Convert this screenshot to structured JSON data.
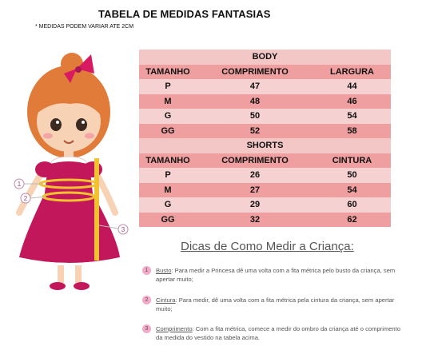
{
  "title": "TABELA DE MEDIDAS FANTASIAS",
  "note": "* MEDIDAS PODEM VARIAR ATE  2CM",
  "body": {
    "section": "BODY",
    "headers": [
      "TAMANHO",
      "COMPRIMENTO",
      "LARGURA"
    ],
    "rows": [
      [
        "P",
        "47",
        "44"
      ],
      [
        "M",
        "48",
        "46"
      ],
      [
        "G",
        "50",
        "54"
      ],
      [
        "GG",
        "52",
        "58"
      ]
    ]
  },
  "shorts": {
    "section": "SHORTS",
    "headers": [
      "TAMANHO",
      "COMPRIMENTO",
      "CINTURA"
    ],
    "rows": [
      [
        "P",
        "26",
        "50"
      ],
      [
        "M",
        "27",
        "54"
      ],
      [
        "G",
        "29",
        "60"
      ],
      [
        "GG",
        "32",
        "62"
      ]
    ]
  },
  "tips": {
    "title": "Dicas de Como Medir a Criança:",
    "items": [
      {
        "num": "1",
        "term": "Busto",
        "text": ": Para medir a Princesa dê uma volta com a fita métrica pelo busto da criança, sem apertar muito;"
      },
      {
        "num": "2",
        "term": "Cintura",
        "text": ": Para medir, dê uma volta com a fita métrica pela cintura da criança, sem apertar muito;"
      },
      {
        "num": "3",
        "term": "Comprimento",
        "text": ": Com a fita métrica, comece a medir do ombro da criança até o comprimento da medida do vestido na tabela acima."
      }
    ]
  },
  "illustration": {
    "markers": [
      "1",
      "2",
      "3"
    ],
    "colors": {
      "dress": "#c2185b",
      "hair": "#e07b39",
      "tape": "#f2c230",
      "skin": "#f8d2b4",
      "bow": "#d81b60"
    }
  }
}
